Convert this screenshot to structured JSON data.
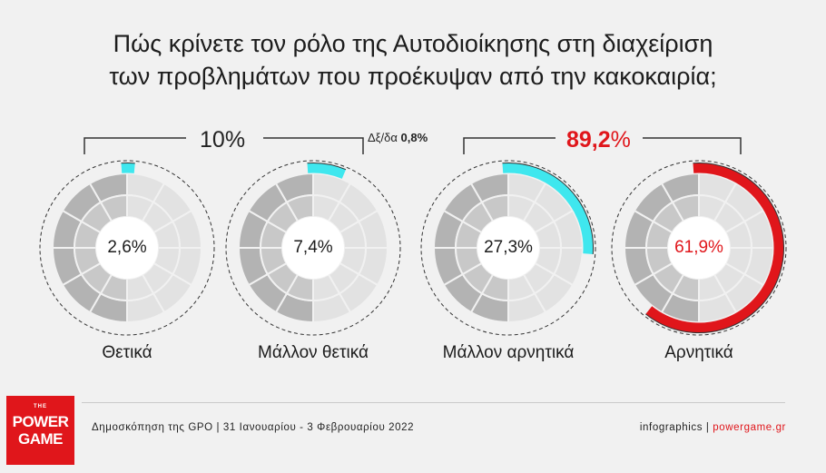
{
  "title": {
    "line1": "Πώς κρίνετε τον ρόλο της Αυτοδιοίκησης στη διαχείριση",
    "line2": "των προβλημάτων που προέκυψαν από την κακοκαιρία;"
  },
  "groups": {
    "positive": {
      "value": "10",
      "sign": "%"
    },
    "negative": {
      "value": "89,2",
      "sign": "%"
    },
    "dkna": {
      "label": "Δξ/δα",
      "value": "0,8%"
    }
  },
  "colors": {
    "highlight_cyan": "#3fe7ee",
    "highlight_red": "#e0161b",
    "segment_light": "#e2e2e2",
    "segment_mid": "#c8c8c8",
    "segment_dark": "#b3b3b3"
  },
  "chart_data": {
    "type": "pie",
    "categories": [
      "Θετικά",
      "Μάλλον θετικά",
      "Μάλλον αρνητικά",
      "Αρνητικά"
    ],
    "values": [
      2.6,
      7.4,
      27.3,
      61.9
    ],
    "value_labels": [
      "2,6%",
      "7,4%",
      "27,3%",
      "61,9%"
    ],
    "highlight": [
      "cyan",
      "cyan",
      "cyan",
      "red"
    ],
    "unit": "%"
  },
  "footer": {
    "logo_the": "THE",
    "logo_line1": "POWER",
    "logo_line2": "GAME",
    "source": "Δημοσκόπηση της GPO | 31 Ιανουαρίου - 3 Φεβρουαρίου 2022",
    "credit_prefix": "infographics | ",
    "credit_site": "powergame.gr"
  }
}
